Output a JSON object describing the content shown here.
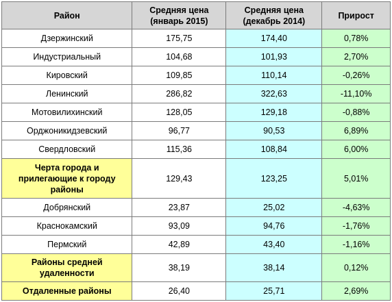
{
  "table": {
    "headers": {
      "district": "Район",
      "jan_2015": "Средняя цена (январь 2015)",
      "dec_2014": "Средняя цена (декабрь 2014)",
      "growth": "Прирост"
    },
    "rows": [
      {
        "district": "Дзержинский",
        "jan_2015": "175,75",
        "dec_2014": "174,40",
        "growth": "0,78%"
      },
      {
        "district": "Индустриальный",
        "jan_2015": "104,68",
        "dec_2014": "101,93",
        "growth": "2,70%"
      },
      {
        "district": "Кировский",
        "jan_2015": "109,85",
        "dec_2014": "110,14",
        "growth": "-0,26%"
      },
      {
        "district": "Ленинский",
        "jan_2015": "286,82",
        "dec_2014": "322,63",
        "growth": "-11,10%"
      },
      {
        "district": "Мотовилихинский",
        "jan_2015": "128,05",
        "dec_2014": "129,18",
        "growth": "-0,88%"
      },
      {
        "district": "Орджоникидзевский",
        "jan_2015": "96,77",
        "dec_2014": "90,53",
        "growth": "6,89%"
      },
      {
        "district": "Свердловский",
        "jan_2015": "115,36",
        "dec_2014": "108,84",
        "growth": "6,00%"
      },
      {
        "district": "Черта города и прилегающие к городу районы",
        "jan_2015": "129,43",
        "dec_2014": "123,25",
        "growth": "5,01%",
        "summary": true
      },
      {
        "district": "Добрянский",
        "jan_2015": "23,87",
        "dec_2014": "25,02",
        "growth": "-4,63%"
      },
      {
        "district": "Краснокамский",
        "jan_2015": "93,09",
        "dec_2014": "94,76",
        "growth": "-1,76%"
      },
      {
        "district": "Пермский",
        "jan_2015": "42,89",
        "dec_2014": "43,40",
        "growth": "-1,16%"
      },
      {
        "district": "Районы средней удаленности",
        "jan_2015": "38,19",
        "dec_2014": "38,14",
        "growth": "0,12%",
        "summary": true
      },
      {
        "district": "Отдаленные районы",
        "jan_2015": "26,40",
        "dec_2014": "25,71",
        "growth": "2,69%",
        "summary": true
      }
    ]
  },
  "colors": {
    "header_bg": "#d6d6d6",
    "dec_column_bg": "#ccffff",
    "growth_column_bg": "#ccffcc",
    "summary_row_bg": "#ffff99",
    "border": "#7a7a7a"
  }
}
